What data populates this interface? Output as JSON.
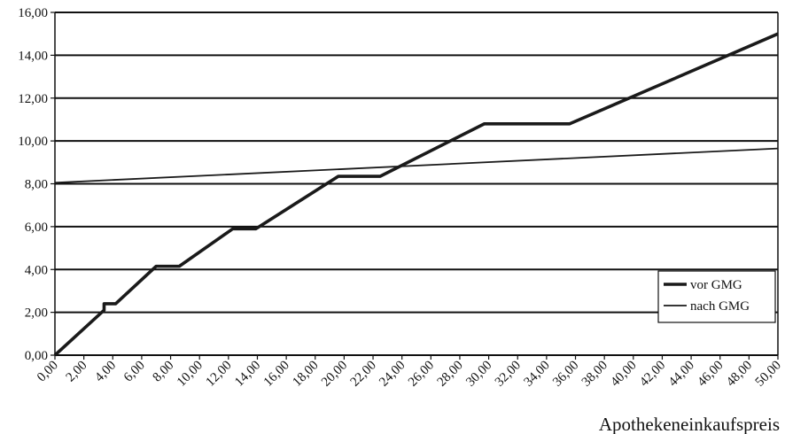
{
  "chart_data": {
    "type": "line",
    "xlabel": "Apothekeneinkaufspreis",
    "ylabel": "",
    "xlim": [
      0,
      50
    ],
    "ylim": [
      0,
      16
    ],
    "grid": "horizontal",
    "legend_position": "bottom-right",
    "y_ticks": [
      "0,00",
      "2,00",
      "4,00",
      "6,00",
      "8,00",
      "10,00",
      "12,00",
      "14,00",
      "16,00"
    ],
    "x_ticks": [
      "0,00",
      "2,00",
      "4,00",
      "6,00",
      "8,00",
      "10,00",
      "12,00",
      "14,00",
      "16,00",
      "18,00",
      "20,00",
      "22,00",
      "24,00",
      "26,00",
      "28,00",
      "30,00",
      "32,00",
      "34,00",
      "36,00",
      "38,00",
      "40,00",
      "42,00",
      "44,00",
      "46,00",
      "48,00",
      "50,00"
    ],
    "series": [
      {
        "name": "vor GMG",
        "color": "#1a1a1a",
        "x": [
          0,
          3.4,
          3.4,
          4.2,
          7.0,
          8.6,
          12.3,
          13.9,
          19.6,
          22.5,
          29.7,
          35.6,
          50
        ],
        "values": [
          0,
          2.1,
          2.4,
          2.4,
          4.15,
          4.15,
          5.9,
          5.9,
          8.35,
          8.35,
          10.8,
          10.8,
          15.0
        ]
      },
      {
        "name": "nach GMG",
        "color": "#1a1a1a",
        "x": [
          0,
          50
        ],
        "values": [
          8.05,
          9.65
        ]
      }
    ]
  }
}
